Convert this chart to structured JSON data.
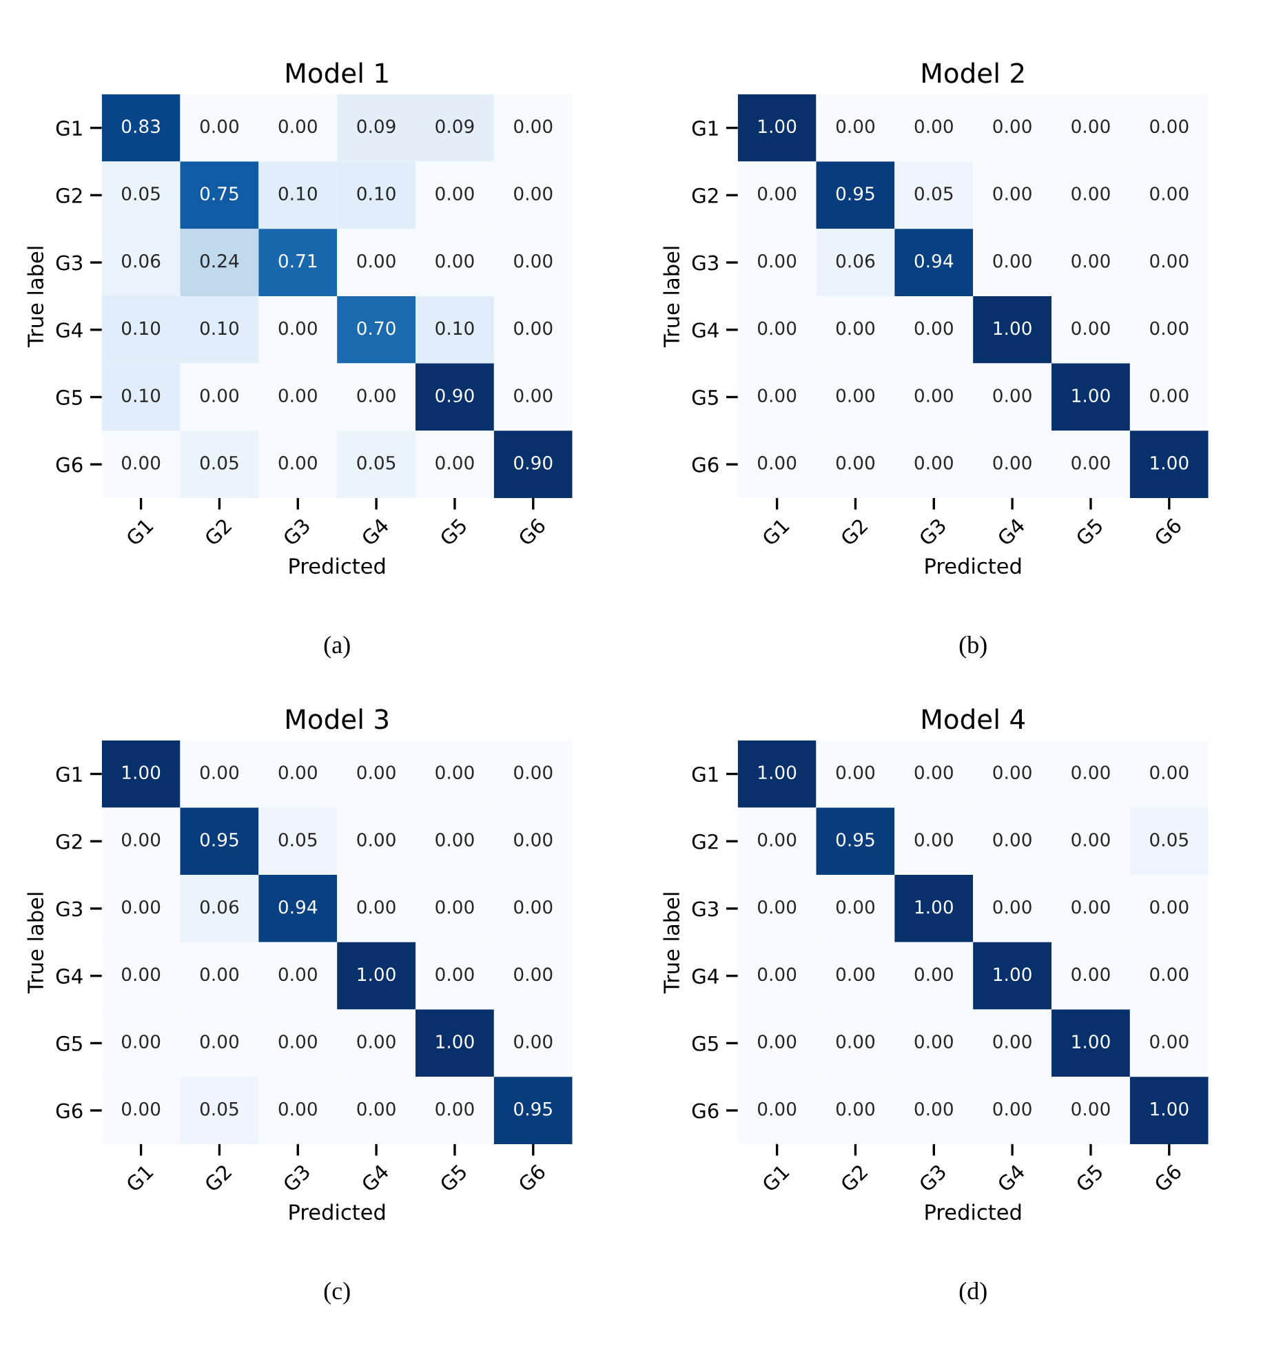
{
  "chart_data": [
    {
      "type": "heatmap",
      "title": "Model 1",
      "xlabel": "Predicted",
      "ylabel": "True label",
      "annotations": [
        "(a)"
      ],
      "categories": [
        "G1",
        "G2",
        "G3",
        "G4",
        "G5",
        "G6"
      ],
      "y_categories": [
        "G1",
        "G2",
        "G3",
        "G4",
        "G5",
        "G6"
      ],
      "cells": [
        [
          0.83,
          0,
          0,
          0.09,
          0.09,
          0
        ],
        [
          0.05,
          0.75,
          0.1,
          0.1,
          0,
          0
        ],
        [
          0.06,
          0.24,
          0.71,
          0,
          0,
          0
        ],
        [
          0.1,
          0.1,
          0,
          0.7,
          0.1,
          0
        ],
        [
          0.1,
          0,
          0,
          0,
          0.9,
          0
        ],
        [
          0,
          0.05,
          0,
          0.05,
          0,
          0.9
        ]
      ],
      "cell_labels": [
        [
          "0.83",
          "0.00",
          "0.00",
          "0.09",
          "0.09",
          "0.00"
        ],
        [
          "0.05",
          "0.75",
          "0.10",
          "0.10",
          "0.00",
          "0.00"
        ],
        [
          "0.06",
          "0.24",
          "0.71",
          "0.00",
          "0.00",
          "0.00"
        ],
        [
          "0.10",
          "0.10",
          "0.00",
          "0.70",
          "0.10",
          "0.00"
        ],
        [
          "0.10",
          "0.00",
          "0.00",
          "0.00",
          "0.90",
          "0.00"
        ],
        [
          "0.00",
          "0.05",
          "0.00",
          "0.05",
          "0.00",
          "0.90"
        ]
      ]
    },
    {
      "type": "heatmap",
      "title": "Model 2",
      "xlabel": "Predicted",
      "ylabel": "True label",
      "annotations": [
        "(b)"
      ],
      "categories": [
        "G1",
        "G2",
        "G3",
        "G4",
        "G5",
        "G6"
      ],
      "y_categories": [
        "G1",
        "G2",
        "G3",
        "G4",
        "G5",
        "G6"
      ],
      "cells": [
        [
          1.0,
          0,
          0,
          0,
          0,
          0
        ],
        [
          0,
          0.95,
          0.05,
          0,
          0,
          0
        ],
        [
          0,
          0.06,
          0.94,
          0,
          0,
          0
        ],
        [
          0,
          0,
          0,
          1.0,
          0,
          0
        ],
        [
          0,
          0,
          0,
          0,
          1.0,
          0
        ],
        [
          0,
          0,
          0,
          0,
          0,
          1.0
        ]
      ],
      "cell_labels": [
        [
          "1.00",
          "0.00",
          "0.00",
          "0.00",
          "0.00",
          "0.00"
        ],
        [
          "0.00",
          "0.95",
          "0.05",
          "0.00",
          "0.00",
          "0.00"
        ],
        [
          "0.00",
          "0.06",
          "0.94",
          "0.00",
          "0.00",
          "0.00"
        ],
        [
          "0.00",
          "0.00",
          "0.00",
          "1.00",
          "0.00",
          "0.00"
        ],
        [
          "0.00",
          "0.00",
          "0.00",
          "0.00",
          "1.00",
          "0.00"
        ],
        [
          "0.00",
          "0.00",
          "0.00",
          "0.00",
          "0.00",
          "1.00"
        ]
      ]
    },
    {
      "type": "heatmap",
      "title": "Model 3",
      "xlabel": "Predicted",
      "ylabel": "True label",
      "annotations": [
        "(c)"
      ],
      "categories": [
        "G1",
        "G2",
        "G3",
        "G4",
        "G5",
        "G6"
      ],
      "y_categories": [
        "G1",
        "G2",
        "G3",
        "G4",
        "G5",
        "G6"
      ],
      "cells": [
        [
          1.0,
          0,
          0,
          0,
          0,
          0
        ],
        [
          0,
          0.95,
          0.05,
          0,
          0,
          0
        ],
        [
          0,
          0.06,
          0.94,
          0,
          0,
          0
        ],
        [
          0,
          0,
          0,
          1.0,
          0,
          0
        ],
        [
          0,
          0,
          0,
          0,
          1.0,
          0
        ],
        [
          0,
          0.05,
          0,
          0,
          0,
          0.95
        ]
      ],
      "cell_labels": [
        [
          "1.00",
          "0.00",
          "0.00",
          "0.00",
          "0.00",
          "0.00"
        ],
        [
          "0.00",
          "0.95",
          "0.05",
          "0.00",
          "0.00",
          "0.00"
        ],
        [
          "0.00",
          "0.06",
          "0.94",
          "0.00",
          "0.00",
          "0.00"
        ],
        [
          "0.00",
          "0.00",
          "0.00",
          "1.00",
          "0.00",
          "0.00"
        ],
        [
          "0.00",
          "0.00",
          "0.00",
          "0.00",
          "1.00",
          "0.00"
        ],
        [
          "0.00",
          "0.05",
          "0.00",
          "0.00",
          "0.00",
          "0.95"
        ]
      ]
    },
    {
      "type": "heatmap",
      "title": "Model 4",
      "xlabel": "Predicted",
      "ylabel": "True label",
      "annotations": [
        "(d)"
      ],
      "categories": [
        "G1",
        "G2",
        "G3",
        "G4",
        "G5",
        "G6"
      ],
      "y_categories": [
        "G1",
        "G2",
        "G3",
        "G4",
        "G5",
        "G6"
      ],
      "cells": [
        [
          1.0,
          0,
          0,
          0,
          0,
          0
        ],
        [
          0,
          0.95,
          0,
          0,
          0,
          0.05
        ],
        [
          0,
          0,
          1.0,
          0,
          0,
          0
        ],
        [
          0,
          0,
          0,
          1.0,
          0,
          0
        ],
        [
          0,
          0,
          0,
          0,
          1.0,
          0
        ],
        [
          0,
          0,
          0,
          0,
          0,
          1.0
        ]
      ],
      "cell_labels": [
        [
          "1.00",
          "0.00",
          "0.00",
          "0.00",
          "0.00",
          "0.00"
        ],
        [
          "0.00",
          "0.95",
          "0.00",
          "0.00",
          "0.00",
          "0.05"
        ],
        [
          "0.00",
          "0.00",
          "1.00",
          "0.00",
          "0.00",
          "0.00"
        ],
        [
          "0.00",
          "0.00",
          "0.00",
          "1.00",
          "0.00",
          "0.00"
        ],
        [
          "0.00",
          "0.00",
          "0.00",
          "0.00",
          "1.00",
          "0.00"
        ],
        [
          "0.00",
          "0.00",
          "0.00",
          "0.00",
          "0.00",
          "1.00"
        ]
      ]
    }
  ]
}
